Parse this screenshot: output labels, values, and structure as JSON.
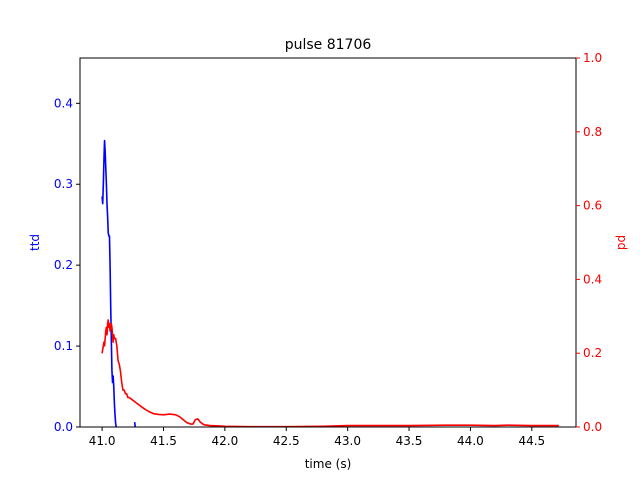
{
  "chart_data": {
    "type": "line",
    "title": "pulse 81706",
    "xlabel": "time (s)",
    "xlim": [
      40.82,
      44.86
    ],
    "x_ticks": [
      41.0,
      41.5,
      42.0,
      42.5,
      43.0,
      43.5,
      44.0,
      44.5
    ],
    "x_tick_labels": [
      "41.0",
      "41.5",
      "42.0",
      "42.5",
      "43.0",
      "43.5",
      "44.0",
      "44.5"
    ],
    "y_left": {
      "label": "ttd",
      "color": "#0000ff",
      "lim": [
        0,
        0.456
      ],
      "ticks": [
        0.0,
        0.1,
        0.2,
        0.3,
        0.4
      ],
      "tick_labels": [
        "0.0",
        "0.1",
        "0.2",
        "0.3",
        "0.4"
      ]
    },
    "y_right": {
      "label": "pd",
      "color": "#ff0000",
      "lim": [
        0,
        1.0
      ],
      "ticks": [
        0.0,
        0.2,
        0.4,
        0.6,
        0.8,
        1.0
      ],
      "tick_labels": [
        "0.0",
        "0.2",
        "0.4",
        "0.6",
        "0.8",
        "1.0"
      ]
    },
    "series": [
      {
        "axis": "left",
        "color": "#0000ff",
        "segments": [
          [
            [
              41.0,
              0.285
            ],
            [
              41.005,
              0.276
            ],
            [
              41.01,
              0.3
            ],
            [
              41.015,
              0.33
            ],
            [
              41.02,
              0.354
            ],
            [
              41.025,
              0.34
            ],
            [
              41.03,
              0.32
            ],
            [
              41.035,
              0.3
            ],
            [
              41.04,
              0.275
            ],
            [
              41.045,
              0.26
            ],
            [
              41.05,
              0.24
            ],
            [
              41.055,
              0.236
            ],
            [
              41.06,
              0.236
            ],
            [
              41.065,
              0.2
            ],
            [
              41.07,
              0.15
            ],
            [
              41.075,
              0.11
            ],
            [
              41.08,
              0.07
            ],
            [
              41.085,
              0.055
            ],
            [
              41.09,
              0.063
            ],
            [
              41.095,
              0.05
            ],
            [
              41.1,
              0.03
            ],
            [
              41.105,
              0.015
            ],
            [
              41.11,
              0.005
            ],
            [
              41.115,
              0.0
            ]
          ],
          [
            [
              41.265,
              0.006
            ],
            [
              41.27,
              0.0
            ]
          ]
        ]
      },
      {
        "axis": "right",
        "color": "#ff0000",
        "segments": [
          [
            [
              41.0,
              0.2
            ],
            [
              41.005,
              0.21
            ],
            [
              41.01,
              0.22
            ],
            [
              41.015,
              0.23
            ],
            [
              41.02,
              0.22
            ],
            [
              41.025,
              0.24
            ],
            [
              41.03,
              0.26
            ],
            [
              41.035,
              0.27
            ],
            [
              41.04,
              0.25
            ],
            [
              41.045,
              0.28
            ],
            [
              41.05,
              0.29
            ],
            [
              41.055,
              0.27
            ],
            [
              41.06,
              0.28
            ],
            [
              41.065,
              0.26
            ],
            [
              41.07,
              0.27
            ],
            [
              41.075,
              0.28
            ],
            [
              41.08,
              0.27
            ],
            [
              41.085,
              0.25
            ],
            [
              41.09,
              0.23
            ],
            [
              41.095,
              0.25
            ],
            [
              41.1,
              0.24
            ],
            [
              41.11,
              0.24
            ],
            [
              41.12,
              0.22
            ],
            [
              41.13,
              0.18
            ],
            [
              41.14,
              0.17
            ],
            [
              41.15,
              0.15
            ],
            [
              41.16,
              0.12
            ],
            [
              41.17,
              0.1
            ],
            [
              41.18,
              0.1
            ],
            [
              41.19,
              0.09
            ],
            [
              41.2,
              0.09
            ],
            [
              41.21,
              0.08
            ],
            [
              41.22,
              0.08
            ],
            [
              41.24,
              0.075
            ],
            [
              41.26,
              0.07
            ],
            [
              41.28,
              0.065
            ],
            [
              41.3,
              0.06
            ],
            [
              41.32,
              0.055
            ],
            [
              41.35,
              0.048
            ],
            [
              41.38,
              0.042
            ],
            [
              41.42,
              0.036
            ],
            [
              41.46,
              0.034
            ],
            [
              41.5,
              0.033
            ],
            [
              41.55,
              0.035
            ],
            [
              41.6,
              0.033
            ],
            [
              41.63,
              0.028
            ],
            [
              41.66,
              0.02
            ],
            [
              41.69,
              0.012
            ],
            [
              41.72,
              0.008
            ],
            [
              41.74,
              0.008
            ],
            [
              41.76,
              0.02
            ],
            [
              41.78,
              0.022
            ],
            [
              41.8,
              0.013
            ],
            [
              41.83,
              0.006
            ],
            [
              41.88,
              0.004
            ],
            [
              41.95,
              0.003
            ],
            [
              42.0,
              0.002
            ],
            [
              42.2,
              0.001
            ],
            [
              42.5,
              0.001
            ],
            [
              42.8,
              0.002
            ],
            [
              43.0,
              0.004
            ],
            [
              43.2,
              0.004
            ],
            [
              43.5,
              0.004
            ],
            [
              43.8,
              0.005
            ],
            [
              44.0,
              0.005
            ],
            [
              44.2,
              0.004
            ],
            [
              44.3,
              0.005
            ],
            [
              44.5,
              0.004
            ],
            [
              44.72,
              0.004
            ]
          ]
        ]
      }
    ]
  }
}
